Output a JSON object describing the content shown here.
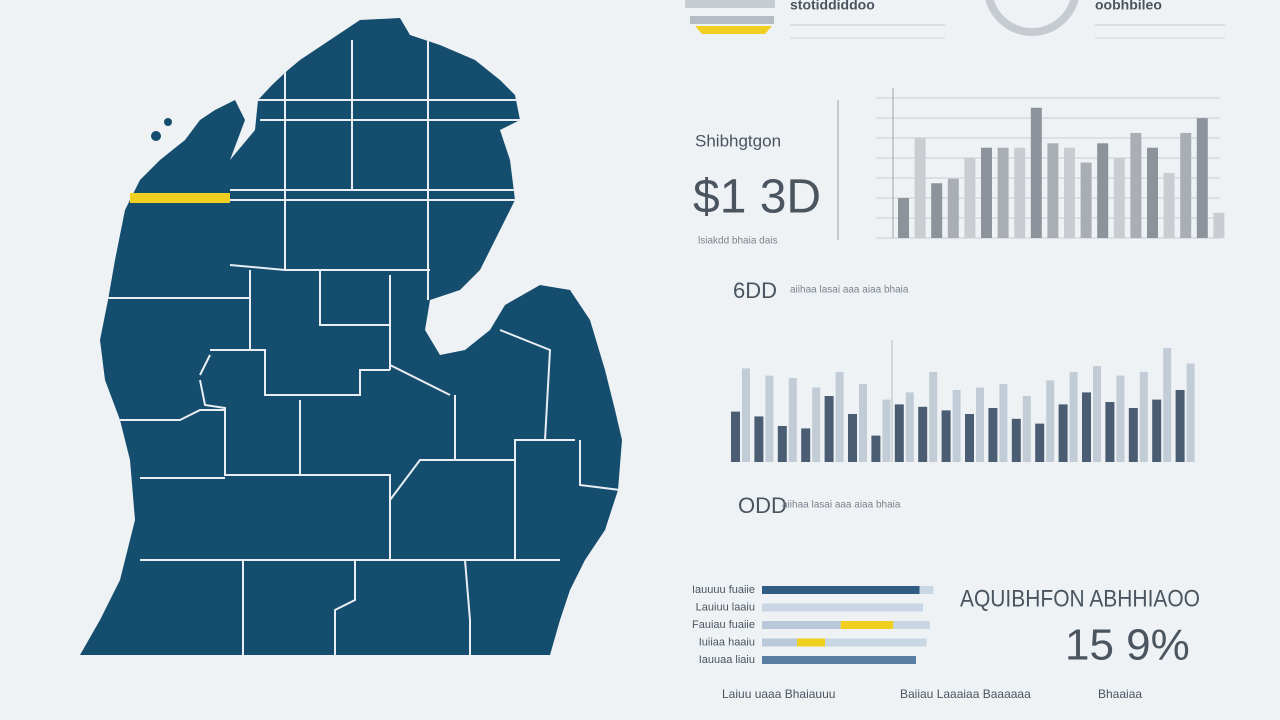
{
  "header": {
    "left_label": "stotiddiddoo",
    "right_label": "oobhbileo"
  },
  "stat1": {
    "label": "Shibhgtgon",
    "value": "$1 3D",
    "note": "lsiakdd bhaia dais"
  },
  "chart1": {
    "values": [
      27,
      68,
      37,
      40,
      54,
      61,
      61,
      61,
      88,
      64,
      61,
      51,
      64,
      54,
      71,
      61,
      44,
      71,
      81,
      17
    ],
    "colors": [
      "#8c939b",
      "#c9cdd2",
      "#8c939b",
      "#a9aeb4",
      "#c9cdd2",
      "#8c939b",
      "#a9aeb4",
      "#c9cdd2",
      "#8c939b",
      "#a9aeb4",
      "#c9cdd2",
      "#a9aeb4",
      "#8c939b",
      "#c9cdd2",
      "#a9aeb4",
      "#8c939b",
      "#c9cdd2",
      "#a9aeb4",
      "#8c939b",
      "#c9cdd2"
    ]
  },
  "stat2": {
    "value": "6DD",
    "note": "aiihaa lasai aaa aiaa bhaia"
  },
  "chart2": {
    "dark_values": [
      42,
      38,
      30,
      28,
      55,
      40,
      22,
      48,
      46,
      43,
      40,
      45,
      36,
      32,
      48,
      58,
      50,
      45,
      52,
      60
    ],
    "light_values": [
      78,
      72,
      70,
      62,
      75,
      65,
      52,
      58,
      75,
      60,
      62,
      65,
      55,
      68,
      75,
      80,
      72,
      75,
      95,
      82
    ],
    "dark_color": "#4b5d72",
    "light_color": "#c2ccd6"
  },
  "stat3": {
    "value": "ODD",
    "note": "aiihaa lasai aaa aiaa bhaia"
  },
  "hbars": {
    "labels": [
      "Iauuuu fuaiie",
      "Lauiuu laaiu",
      "Fauiau fuaiie",
      "Iuiiaa haaiu",
      "Iauuaa liaiu"
    ],
    "rows": [
      [
        {
          "value": 90,
          "color": "#2f5b85"
        },
        {
          "value": 8,
          "color": "#c9d6e3"
        }
      ],
      [
        {
          "value": 92,
          "color": "#c9d6e3"
        }
      ],
      [
        {
          "value": 45,
          "color": "#b9c9da"
        },
        {
          "value": 30,
          "color": "#f1cf1f"
        },
        {
          "value": 21,
          "color": "#c9d6e3"
        }
      ],
      [
        {
          "value": 20,
          "color": "#b9c9da"
        },
        {
          "value": 16,
          "color": "#f1cf1f"
        },
        {
          "value": 58,
          "color": "#c9d6e3"
        }
      ],
      [
        {
          "value": 88,
          "color": "#5a7ea3"
        }
      ]
    ]
  },
  "stat4": {
    "label": "AQUIBHFON ABHHIAOO",
    "value": "15 9%"
  },
  "footer": {
    "texts": [
      "Laiuu uaaa Bhaiauuu",
      "Baiiau Laaaiaa Baaaaaa",
      "Bhaaiaa"
    ]
  }
}
